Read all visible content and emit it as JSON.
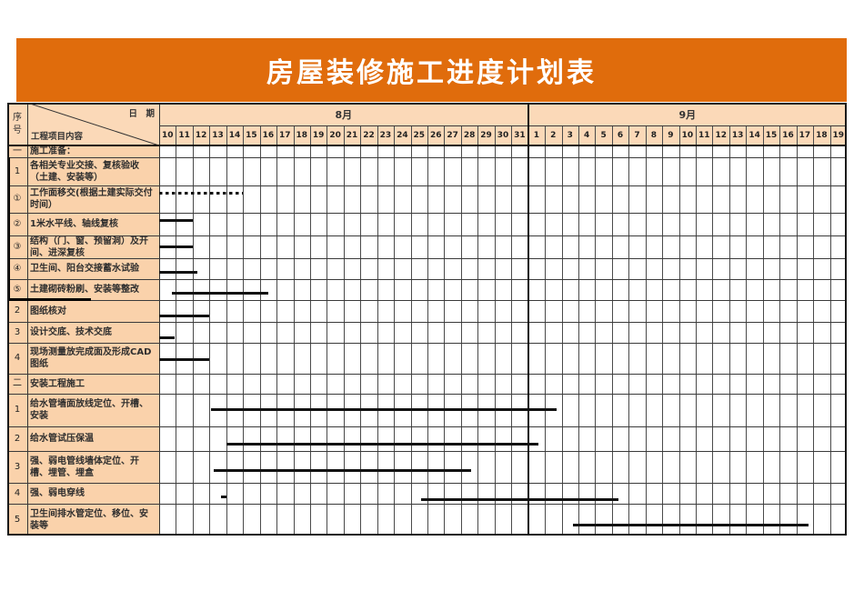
{
  "title": "房屋装修施工进度计划表",
  "colors": {
    "banner": "#E06C0C",
    "header_fill": "#FBD9B8",
    "label_fill": "#FAD2AB",
    "bar": "#121212",
    "grid_line": "#4a4a4a",
    "border": "#1a1a1a",
    "title_text": "#FFFFFF"
  },
  "header": {
    "seq_label": "序号",
    "corner_date_label": "日　期",
    "corner_content_label": "工程项目内容"
  },
  "chart_data": {
    "type": "gantt",
    "title": "房屋装修施工进度计划表",
    "calendar": {
      "months": [
        {
          "label": "8月",
          "days": [
            "10",
            "11",
            "12",
            "13",
            "14",
            "15",
            "16",
            "17",
            "18",
            "19",
            "20",
            "21",
            "22",
            "23",
            "24",
            "25",
            "26",
            "27",
            "28",
            "29",
            "30",
            "31"
          ]
        },
        {
          "label": "9月",
          "days": [
            "1",
            "2",
            "3",
            "4",
            "5",
            "6",
            "7",
            "8",
            "9",
            "10",
            "11",
            "12",
            "13",
            "14",
            "15",
            "16",
            "17",
            "18",
            "19"
          ]
        }
      ]
    },
    "tasks": [
      {
        "no": "一",
        "name": "施工准备：",
        "section": true,
        "bars": []
      },
      {
        "no": "1",
        "name": "各相关专业交接、复核验收（土建、安装等）",
        "bars": []
      },
      {
        "no": "①",
        "name": "工作面移交(根据土建实际交付时间）",
        "bars": [
          {
            "start": "8/10",
            "end": "8/14",
            "style": "dotted",
            "start_col": 0,
            "end_col": 5.0,
            "y_frac": 0.23
          }
        ]
      },
      {
        "no": "②",
        "name": "1米水平线、轴线复核",
        "bars": [
          {
            "start": "8/10",
            "end": "8/11",
            "style": "solid",
            "start_col": 0,
            "end_col": 2.0,
            "y_frac": 0.28
          }
        ]
      },
      {
        "no": "③",
        "name": "结构（门、窗、预留洞）及开间、进深复核",
        "bars": [
          {
            "start": "8/10",
            "end": "8/11",
            "style": "solid",
            "start_col": 0,
            "end_col": 2.0,
            "y_frac": 0.44
          }
        ]
      },
      {
        "no": "④",
        "name": "卫生间、阳台交接蓄水试验",
        "bars": [
          {
            "start": "8/10",
            "end": "8/12",
            "style": "solid",
            "start_col": 0,
            "end_col": 2.3,
            "y_frac": 0.6
          }
        ]
      },
      {
        "no": "⑤",
        "name": "土建砌砖粉刷、安装等整改",
        "bars": [
          {
            "start": "8/11",
            "end": "8/16",
            "style": "solid",
            "start_col": 0.76,
            "end_col": 6.5,
            "y_frac": 0.62
          }
        ]
      },
      {
        "no": "2",
        "name": "图纸核对",
        "bars": [
          {
            "start": "8/10",
            "end": "8/12",
            "style": "solid",
            "start_col": 0,
            "end_col": 3.0,
            "y_frac": 0.68
          }
        ]
      },
      {
        "no": "3",
        "name": "设计交底、技术交底",
        "bars": [
          {
            "start": "8/10",
            "end": "8/10",
            "style": "solid",
            "start_col": 0,
            "end_col": 0.92,
            "y_frac": 0.68
          }
        ]
      },
      {
        "no": "4",
        "name": "现场测量放完成面及形成CAD图纸",
        "bars": [
          {
            "start": "8/10",
            "end": "8/12",
            "style": "solid",
            "start_col": 0,
            "end_col": 3.0,
            "y_frac": 0.5
          }
        ]
      },
      {
        "no": "二",
        "name": "安装工程施工",
        "section": true,
        "bars": []
      },
      {
        "no": "1",
        "name": "给水管墙面放线定位、开槽、安装",
        "bars": [
          {
            "start": "8/13",
            "end": "9/2",
            "style": "solid",
            "start_col": 3.1,
            "end_col": 23.7,
            "y_frac": 0.44
          }
        ]
      },
      {
        "no": "2",
        "name": "给水管试压保温",
        "bars": [
          {
            "start": "8/14",
            "end": "9/1",
            "style": "solid",
            "start_col": 4.0,
            "end_col": 22.6,
            "y_frac": 0.67
          }
        ]
      },
      {
        "no": "3",
        "name": "强、弱电管线墙体定位、开槽、埋管、埋盒",
        "bars": [
          {
            "start": "8/13",
            "end": "8/28",
            "style": "solid",
            "start_col": 3.25,
            "end_col": 18.6,
            "y_frac": 0.57
          }
        ]
      },
      {
        "no": "4",
        "name": "强、弱电穿线",
        "bars": [
          {
            "start": "8/13",
            "end": "8/13",
            "style": "solid",
            "start_col": 3.7,
            "end_col": 4.0,
            "y_frac": 0.62
          },
          {
            "start": "8/25",
            "end": "9/6",
            "style": "solid",
            "start_col": 15.6,
            "end_col": 27.4,
            "y_frac": 0.74
          }
        ]
      },
      {
        "no": "5",
        "name": "卫生间排水管定位、移位、安装等",
        "bars": [
          {
            "start": "9/3",
            "end": "9/17",
            "style": "solid",
            "start_col": 24.7,
            "end_col": 38.7,
            "y_frac": 0.63
          }
        ]
      }
    ]
  }
}
